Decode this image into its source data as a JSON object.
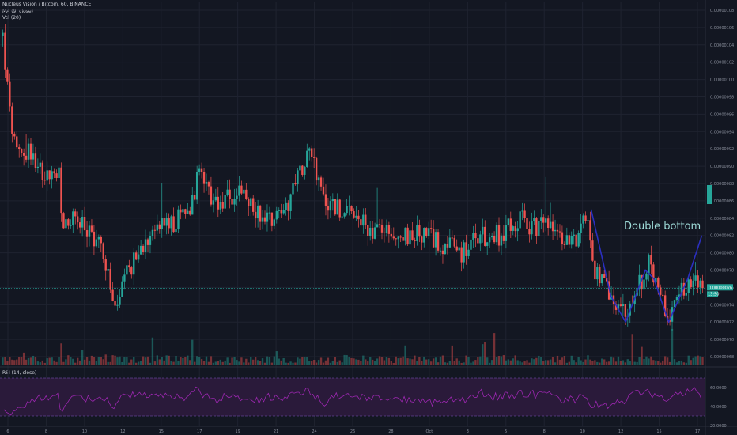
{
  "legend": {
    "title": "Nucleus Vision / Bitcoin, 60, BINANCE",
    "ma": "MA (9, close)",
    "vol": "Vol (20)",
    "rsi": "RSI (14, close)"
  },
  "price_badges": {
    "last": "0.00000076",
    "timer": "13:50"
  },
  "colors": {
    "background": "#131722",
    "up": "#26a69a",
    "down": "#ef5350",
    "rsi_line": "#9c27b0",
    "rsi_band": "#2a1a3a",
    "pattern_line": "#2b2fbf",
    "price_line": "#26a69a"
  },
  "chart_data": [
    {
      "type": "candlestick",
      "title": "Nucleus Vision / Bitcoin, 60, BINANCE",
      "annotation": "Double bottom",
      "ylim": [
        6.7e-07,
        1.09e-06
      ],
      "y_ticks": [
        "0.00000068",
        "0.00000070",
        "0.00000072",
        "0.00000074",
        "0.00000076",
        "0.00000078",
        "0.00000080",
        "0.00000082",
        "0.00000084",
        "0.00000086",
        "0.00000088",
        "0.00000090",
        "0.00000092",
        "0.00000094",
        "0.00000096",
        "0.00000098",
        "0.00000100",
        "0.00000102",
        "0.00000104",
        "0.00000106",
        "0.00000108"
      ],
      "x_ticks": [
        "6",
        "8",
        "10",
        "12",
        "15",
        "17",
        "19",
        "21",
        "24",
        "26",
        "28",
        "Oct",
        "3",
        "5",
        "8",
        "10",
        "12",
        "15",
        "17"
      ],
      "close_path": [
        [
          0,
          1.05
        ],
        [
          0.01,
          0.96
        ],
        [
          0.02,
          0.91
        ],
        [
          0.04,
          0.92
        ],
        [
          0.06,
          0.89
        ],
        [
          0.08,
          0.89
        ],
        [
          0.085,
          0.83
        ],
        [
          0.1,
          0.84
        ],
        [
          0.13,
          0.82
        ],
        [
          0.145,
          0.8
        ],
        [
          0.16,
          0.73
        ],
        [
          0.175,
          0.77
        ],
        [
          0.2,
          0.81
        ],
        [
          0.22,
          0.84
        ],
        [
          0.24,
          0.83
        ],
        [
          0.265,
          0.85
        ],
        [
          0.285,
          0.9
        ],
        [
          0.3,
          0.85
        ],
        [
          0.32,
          0.86
        ],
        [
          0.335,
          0.87
        ],
        [
          0.36,
          0.85
        ],
        [
          0.38,
          0.84
        ],
        [
          0.41,
          0.86
        ],
        [
          0.44,
          0.93
        ],
        [
          0.45,
          0.88
        ],
        [
          0.46,
          0.86
        ],
        [
          0.48,
          0.85
        ],
        [
          0.5,
          0.84
        ],
        [
          0.52,
          0.83
        ],
        [
          0.55,
          0.82
        ],
        [
          0.58,
          0.82
        ],
        [
          0.6,
          0.82
        ],
        [
          0.63,
          0.81
        ],
        [
          0.66,
          0.8
        ],
        [
          0.68,
          0.82
        ],
        [
          0.71,
          0.82
        ],
        [
          0.74,
          0.84
        ],
        [
          0.76,
          0.83
        ],
        [
          0.78,
          0.84
        ],
        [
          0.8,
          0.81
        ],
        [
          0.82,
          0.82
        ],
        [
          0.835,
          0.85
        ],
        [
          0.845,
          0.78
        ],
        [
          0.86,
          0.76
        ],
        [
          0.875,
          0.74
        ],
        [
          0.89,
          0.73
        ],
        [
          0.9,
          0.75
        ],
        [
          0.915,
          0.77
        ],
        [
          0.925,
          0.79
        ],
        [
          0.935,
          0.76
        ],
        [
          0.945,
          0.74
        ],
        [
          0.955,
          0.73
        ],
        [
          0.965,
          0.75
        ],
        [
          0.98,
          0.77
        ],
        [
          0.995,
          0.76
        ]
      ],
      "pattern_points": [
        [
          0.838,
          8.5e-07
        ],
        [
          0.866,
          7.5e-07
        ],
        [
          0.887,
          7.2e-07
        ],
        [
          0.915,
          7.8e-07
        ],
        [
          0.927,
          7.7e-07
        ],
        [
          0.948,
          7.2e-07
        ],
        [
          0.975,
          7.7e-07
        ],
        [
          0.995,
          8.2e-07
        ]
      ]
    },
    {
      "type": "line",
      "title": "RSI (14, close)",
      "ylim": [
        20,
        80
      ],
      "y_ticks": [
        "20.0000",
        "40.0000",
        "60.0000"
      ],
      "bands": [
        30,
        70
      ]
    }
  ]
}
